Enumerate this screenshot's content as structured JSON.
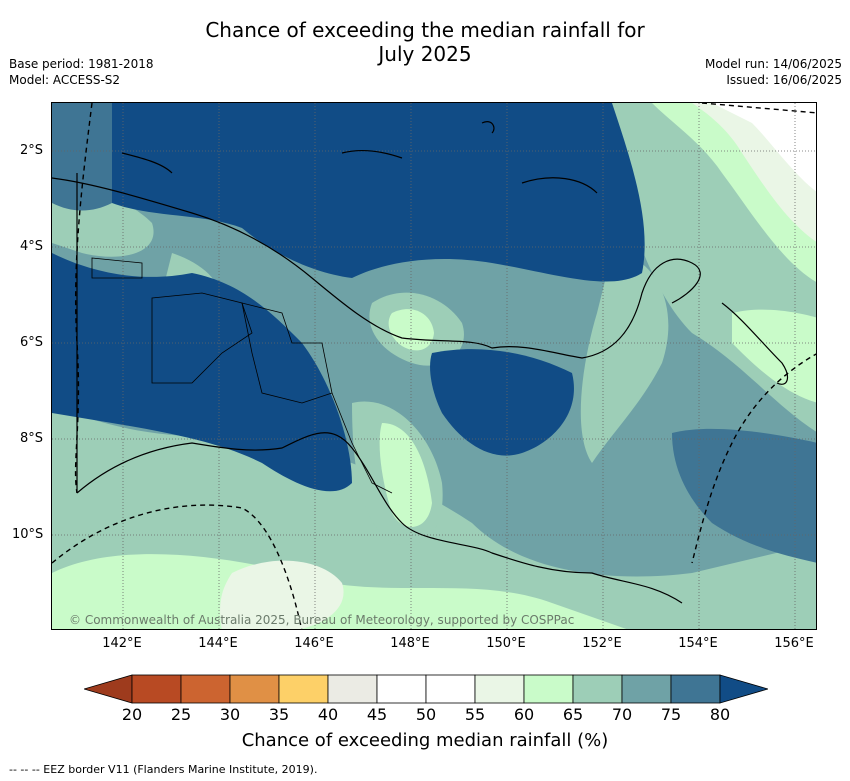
{
  "title": "Chance of exceeding the median rainfall for July 2025",
  "title_line1": "Chance of exceeding the median rainfall for",
  "title_line2": "July 2025",
  "meta_left": {
    "base_period": "Base period: 1981-2018",
    "model": "Model: ACCESS-S2"
  },
  "meta_right": {
    "model_run": "Model run: 14/06/2025",
    "issued": "Issued: 16/06/2025"
  },
  "axes": {
    "lat_labels": [
      "2°S",
      "4°S",
      "6°S",
      "8°S",
      "10°S"
    ],
    "lon_labels": [
      "142°E",
      "144°E",
      "146°E",
      "148°E",
      "150°E",
      "152°E",
      "154°E",
      "156°E"
    ]
  },
  "copyright": "© Commonwealth of Australia 2025, Bureau of Meteorology, supported by COSPPac",
  "colorbar": {
    "ticks": [
      "20",
      "25",
      "30",
      "35",
      "40",
      "45",
      "50",
      "55",
      "60",
      "65",
      "70",
      "75",
      "80"
    ],
    "colors": [
      "#9e3b1d",
      "#b84a23",
      "#cc6430",
      "#e09045",
      "#fdd068",
      "#ebebe4",
      "#ffffff",
      "#ffffff",
      "#eaf6e6",
      "#c9fbc9",
      "#9dceb7",
      "#6fa2a6",
      "#3f7594",
      "#114c86"
    ],
    "label": "Chance of exceeding median rainfall (%)"
  },
  "legend_note": "-- -- -- EEZ border V11 (Flanders Marine Institute, 2019)."
}
